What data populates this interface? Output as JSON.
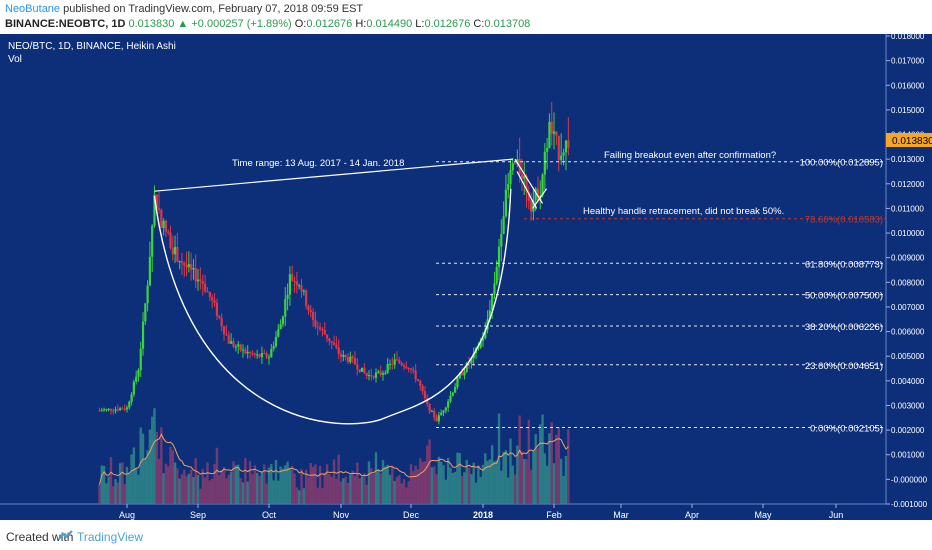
{
  "header": {
    "author": "NeoButane",
    "published": "published on TradingView.com, February 07, 2018 09:59 EST",
    "symbol": "BINANCE:NEOBTC, 1D",
    "price": "0.013830",
    "change": "+0.000257 (+1.89%)",
    "open_label": "O:",
    "open": "0.012676",
    "high_label": "H:",
    "high": "0.014490",
    "low_label": "L:",
    "low": "0.012676",
    "close_label": "C:",
    "close": "0.013708"
  },
  "footer": {
    "created": "Created with",
    "brand": "TradingView"
  },
  "colors": {
    "background": "#0d2f7a",
    "bull": "#3bd43b",
    "bear": "#e0364a",
    "vol_bull": "#2f8a8a",
    "vol_bear": "#8a3b6e",
    "vol_ma": "#f5a05a",
    "fib": "#e6e6e6",
    "fib_50_label": "#c0392b",
    "pricebox": "#f5a623"
  },
  "chart_data": {
    "type": "candlestick",
    "title": "NEO/BTC, 1D, BINANCE, Heikin Ashi",
    "subtitle": "Vol",
    "x_ticks": [
      "Aug",
      "Sep",
      "Oct",
      "Nov",
      "Dec",
      "2018",
      "Feb",
      "Mar",
      "Apr",
      "May",
      "Jun"
    ],
    "x_tick_dates": [
      "2017-08-01",
      "2017-09-01",
      "2017-10-01",
      "2017-11-01",
      "2017-12-01",
      "2018-01-01",
      "2018-02-01",
      "2018-03-01",
      "2018-04-01",
      "2018-05-01",
      "2018-06-01"
    ],
    "y_ticks": [
      "0.018000",
      "0.017000",
      "0.016000",
      "0.015000",
      "0.014000",
      "0.013000",
      "0.012000",
      "0.011000",
      "0.010000",
      "0.009000",
      "0.008000",
      "0.007000",
      "0.006000",
      "0.005000",
      "0.004000",
      "0.003000",
      "0.002000",
      "0.001000",
      "-0.000000",
      "-0.001000"
    ],
    "ylim": [
      -0.001,
      0.018
    ],
    "last_price": "0.013830",
    "fib_levels": [
      {
        "ratio": 1.0,
        "value": 0.012895,
        "label": "100.00%(0.012895)"
      },
      {
        "ratio": 0.786,
        "value": 0.010583,
        "label": "78.60%(0.010583)"
      },
      {
        "ratio": 0.618,
        "value": 0.008773,
        "label": "61.80%(0.008773)"
      },
      {
        "ratio": 0.5,
        "value": 0.0075,
        "label": "50.00%(0.007500)"
      },
      {
        "ratio": 0.382,
        "value": 0.006226,
        "label": "38.20%(0.006226)"
      },
      {
        "ratio": 0.236,
        "value": 0.004651,
        "label": "23.60%(0.004651)"
      },
      {
        "ratio": 0.0,
        "value": 0.002105,
        "label": "0.00%(0.002105)"
      }
    ],
    "annotations": [
      "Time range: 13 Aug. 2017 - 14 Jan. 2018",
      "Failing breakout even after confirmation?",
      "Healthy handle retracement, did not break 50%."
    ],
    "close_series": [
      [
        "2017-07-20",
        0.0028
      ],
      [
        "2017-08-01",
        0.0029
      ],
      [
        "2017-08-06",
        0.0045
      ],
      [
        "2017-08-10",
        0.008
      ],
      [
        "2017-08-13",
        0.0115
      ],
      [
        "2017-08-16",
        0.0105
      ],
      [
        "2017-08-22",
        0.0092
      ],
      [
        "2017-08-28",
        0.0085
      ],
      [
        "2017-09-03",
        0.008
      ],
      [
        "2017-09-08",
        0.007
      ],
      [
        "2017-09-14",
        0.0056
      ],
      [
        "2017-09-20",
        0.0052
      ],
      [
        "2017-09-26",
        0.005
      ],
      [
        "2017-10-01",
        0.005
      ],
      [
        "2017-10-06",
        0.0063
      ],
      [
        "2017-10-10",
        0.0082
      ],
      [
        "2017-10-14",
        0.008
      ],
      [
        "2017-10-20",
        0.0064
      ],
      [
        "2017-10-26",
        0.0058
      ],
      [
        "2017-11-01",
        0.005
      ],
      [
        "2017-11-06",
        0.0048
      ],
      [
        "2017-11-12",
        0.0042
      ],
      [
        "2017-11-18",
        0.0043
      ],
      [
        "2017-11-24",
        0.0048
      ],
      [
        "2017-11-30",
        0.0046
      ],
      [
        "2017-12-04",
        0.004
      ],
      [
        "2017-12-08",
        0.003
      ],
      [
        "2017-12-12",
        0.0024
      ],
      [
        "2017-12-16",
        0.003
      ],
      [
        "2017-12-22",
        0.0042
      ],
      [
        "2017-12-28",
        0.005
      ],
      [
        "2018-01-02",
        0.006
      ],
      [
        "2018-01-06",
        0.008
      ],
      [
        "2018-01-10",
        0.011
      ],
      [
        "2018-01-14",
        0.0128
      ],
      [
        "2018-01-18",
        0.0125
      ],
      [
        "2018-01-22",
        0.0112
      ],
      [
        "2018-01-26",
        0.0118
      ],
      [
        "2018-01-30",
        0.0143
      ],
      [
        "2018-02-03",
        0.0133
      ],
      [
        "2018-02-07",
        0.0137
      ]
    ]
  }
}
